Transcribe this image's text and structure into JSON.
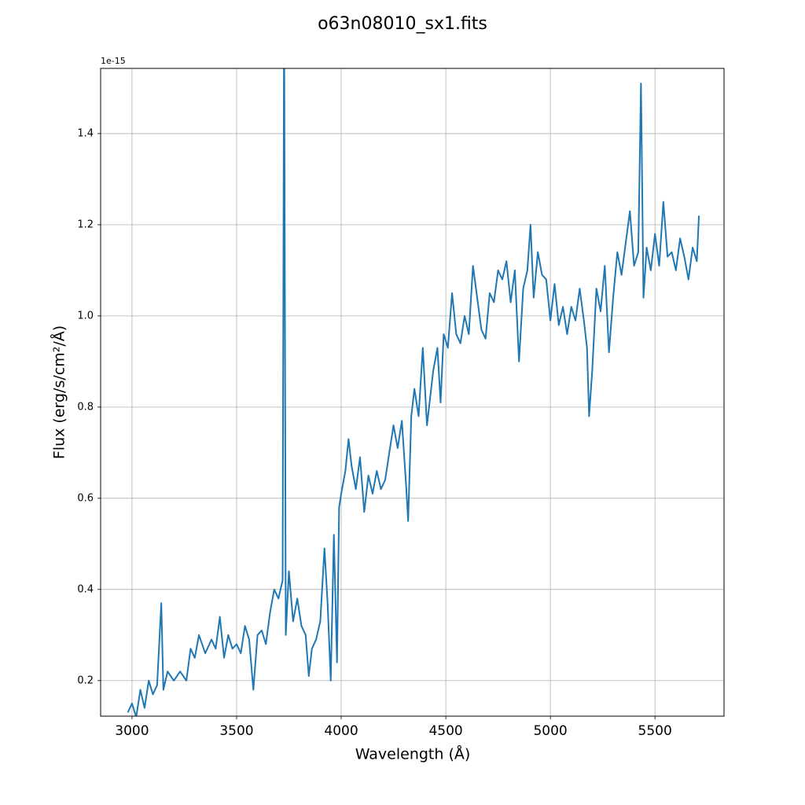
{
  "chart_data": {
    "type": "line",
    "title": "o63n08010_sx1.fits",
    "title_color": "#ff0000",
    "x_label": "Wavelength (Å)",
    "y_label": "Flux (erg/s/cm²/Å)",
    "y_offset_label": "1e-15",
    "grid": true,
    "xlim": [
      2850,
      5830
    ],
    "ylim": [
      0.122,
      1.543
    ],
    "xticks": [
      3000,
      3500,
      4000,
      4500,
      5000,
      5500
    ],
    "yticks": [
      0.2,
      0.4,
      0.6,
      0.8,
      {
        "value": 1,
        "label": "1.0"
      },
      1.2,
      1.4
    ],
    "x": [
      2980,
      3000,
      3020,
      3040,
      3060,
      3080,
      3100,
      3120,
      3140,
      3150,
      3170,
      3200,
      3230,
      3260,
      3280,
      3300,
      3320,
      3350,
      3380,
      3400,
      3420,
      3440,
      3460,
      3480,
      3500,
      3520,
      3540,
      3560,
      3580,
      3600,
      3620,
      3640,
      3660,
      3680,
      3700,
      3720,
      3727,
      3735,
      3750,
      3770,
      3790,
      3810,
      3830,
      3845,
      3860,
      3880,
      3900,
      3920,
      3935,
      3950,
      3965,
      3980,
      3990,
      4000,
      4020,
      4035,
      4050,
      4070,
      4090,
      4110,
      4130,
      4150,
      4170,
      4190,
      4210,
      4230,
      4250,
      4270,
      4290,
      4310,
      4320,
      4335,
      4350,
      4370,
      4390,
      4410,
      4420,
      4440,
      4460,
      4475,
      4490,
      4510,
      4530,
      4550,
      4570,
      4590,
      4610,
      4630,
      4650,
      4670,
      4690,
      4710,
      4730,
      4750,
      4770,
      4790,
      4810,
      4830,
      4850,
      4870,
      4890,
      4905,
      4920,
      4940,
      4960,
      4980,
      5000,
      5020,
      5040,
      5060,
      5080,
      5100,
      5120,
      5140,
      5160,
      5175,
      5185,
      5200,
      5220,
      5240,
      5260,
      5280,
      5300,
      5320,
      5340,
      5360,
      5380,
      5400,
      5420,
      5433,
      5445,
      5460,
      5480,
      5500,
      5520,
      5540,
      5560,
      5580,
      5600,
      5620,
      5640,
      5660,
      5680,
      5700,
      5710
    ],
    "series": [
      {
        "name": "flux",
        "color": "#1f77b4",
        "values": [
          0.13,
          0.15,
          0.12,
          0.18,
          0.14,
          0.2,
          0.17,
          0.19,
          0.37,
          0.18,
          0.22,
          0.2,
          0.22,
          0.2,
          0.27,
          0.25,
          0.3,
          0.26,
          0.29,
          0.27,
          0.34,
          0.25,
          0.3,
          0.27,
          0.28,
          0.26,
          0.32,
          0.29,
          0.18,
          0.3,
          0.31,
          0.28,
          0.35,
          0.4,
          0.38,
          0.42,
          1.7,
          0.3,
          0.44,
          0.33,
          0.38,
          0.32,
          0.3,
          0.21,
          0.27,
          0.29,
          0.33,
          0.49,
          0.37,
          0.2,
          0.52,
          0.24,
          0.58,
          0.61,
          0.66,
          0.73,
          0.67,
          0.62,
          0.69,
          0.57,
          0.65,
          0.61,
          0.66,
          0.62,
          0.64,
          0.7,
          0.76,
          0.71,
          0.77,
          0.63,
          0.55,
          0.78,
          0.84,
          0.78,
          0.93,
          0.76,
          0.8,
          0.88,
          0.93,
          0.81,
          0.96,
          0.93,
          1.05,
          0.96,
          0.94,
          1.0,
          0.96,
          1.11,
          1.04,
          0.97,
          0.95,
          1.05,
          1.03,
          1.1,
          1.08,
          1.12,
          1.03,
          1.1,
          0.9,
          1.06,
          1.1,
          1.2,
          1.04,
          1.14,
          1.09,
          1.08,
          0.99,
          1.07,
          0.98,
          1.02,
          0.96,
          1.02,
          0.99,
          1.06,
          0.99,
          0.93,
          0.78,
          0.88,
          1.06,
          1.01,
          1.11,
          0.92,
          1.04,
          1.14,
          1.09,
          1.16,
          1.23,
          1.11,
          1.14,
          1.51,
          1.04,
          1.15,
          1.1,
          1.18,
          1.11,
          1.25,
          1.13,
          1.14,
          1.1,
          1.17,
          1.13,
          1.08,
          1.15,
          1.12,
          1.22
        ]
      }
    ]
  }
}
